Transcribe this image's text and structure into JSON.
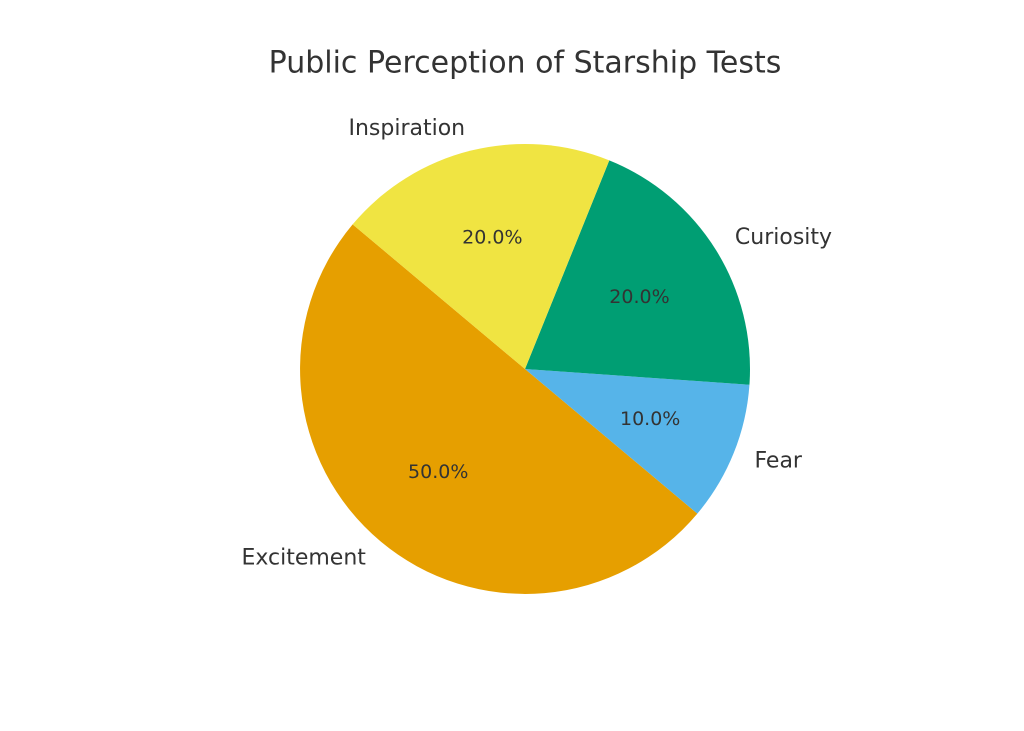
{
  "chart_data": {
    "type": "pie",
    "title": "Public Perception of Starship Tests",
    "categories": [
      "Excitement",
      "Fear",
      "Curiosity",
      "Inspiration"
    ],
    "values": [
      50,
      10,
      20,
      20
    ],
    "value_labels": [
      "50.0%",
      "10.0%",
      "20.0%",
      "20.0%"
    ],
    "colors": [
      "#E69F00",
      "#56B4E9",
      "#009E73",
      "#F0E442"
    ],
    "start_angle": 140
  }
}
